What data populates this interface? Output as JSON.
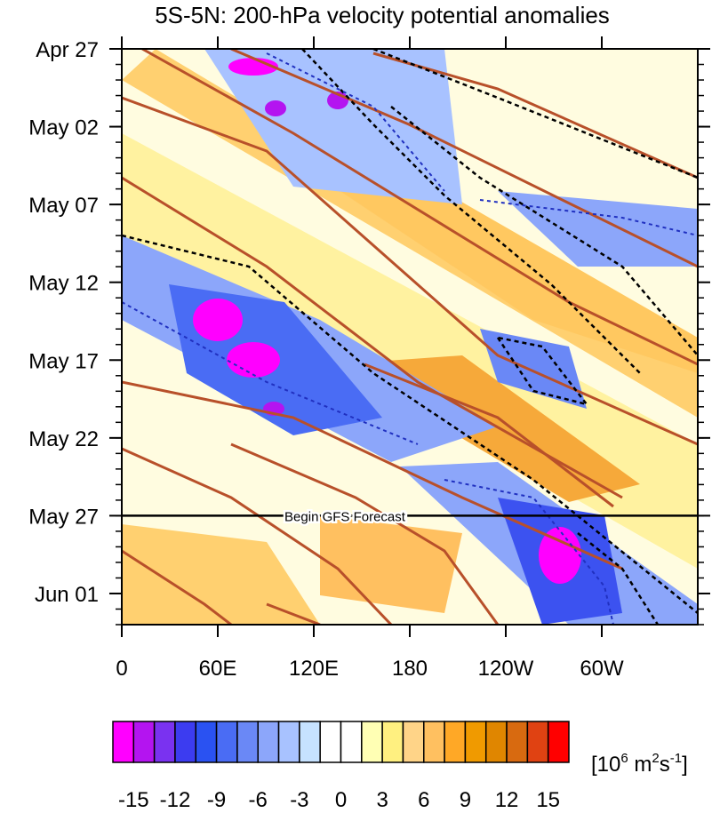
{
  "chart_data": {
    "type": "contour",
    "title": "5S-5N: 200-hPa velocity potential anomalies",
    "xlim": [
      0,
      360
    ],
    "xticks": [
      0,
      {
        "value": 60,
        "label": "60E"
      },
      {
        "value": 120,
        "label": "120E"
      },
      180,
      {
        "value": 240,
        "label": "120W"
      },
      {
        "value": 300,
        "label": "60W"
      }
    ],
    "ylim": [
      0,
      37
    ],
    "yticks": [
      {
        "value": 0,
        "label": "Apr 27"
      },
      {
        "value": 5,
        "label": "May 02"
      },
      {
        "value": 10,
        "label": "May 07"
      },
      {
        "value": 15,
        "label": "May 12"
      },
      {
        "value": 20,
        "label": "May 17"
      },
      {
        "value": 25,
        "label": "May 22"
      },
      {
        "value": 30,
        "label": "May 27"
      },
      {
        "value": 35,
        "label": "Jun 01"
      }
    ],
    "yminor_step": 1,
    "y_reversed": true,
    "annotation": {
      "value": 30,
      "label": "Begin GFS Forecast"
    },
    "colorbar": {
      "lim": [
        -16.5,
        16.5
      ],
      "ticks": [
        -15,
        -12,
        -9,
        -6,
        -3,
        0,
        3,
        6,
        9,
        12,
        15
      ],
      "colors": [
        "#ff00ff",
        "#b414f0",
        "#7a32f0",
        "#3c3cf0",
        "#2a52f2",
        "#4a6cf4",
        "#6a88f6",
        "#8ca6fa",
        "#a8c2ff",
        "#c6e2ff",
        "#ffffff",
        "#ffffff",
        "#ffffb4",
        "#fff080",
        "#ffd488",
        "#ffc060",
        "#ffa826",
        "#f09a00",
        "#e08600",
        "#d86a10",
        "#e04212",
        "#ff0000"
      ],
      "units": [
        "[10",
        "6",
        " m",
        "2",
        "s",
        "-1",
        "]"
      ]
    }
  }
}
